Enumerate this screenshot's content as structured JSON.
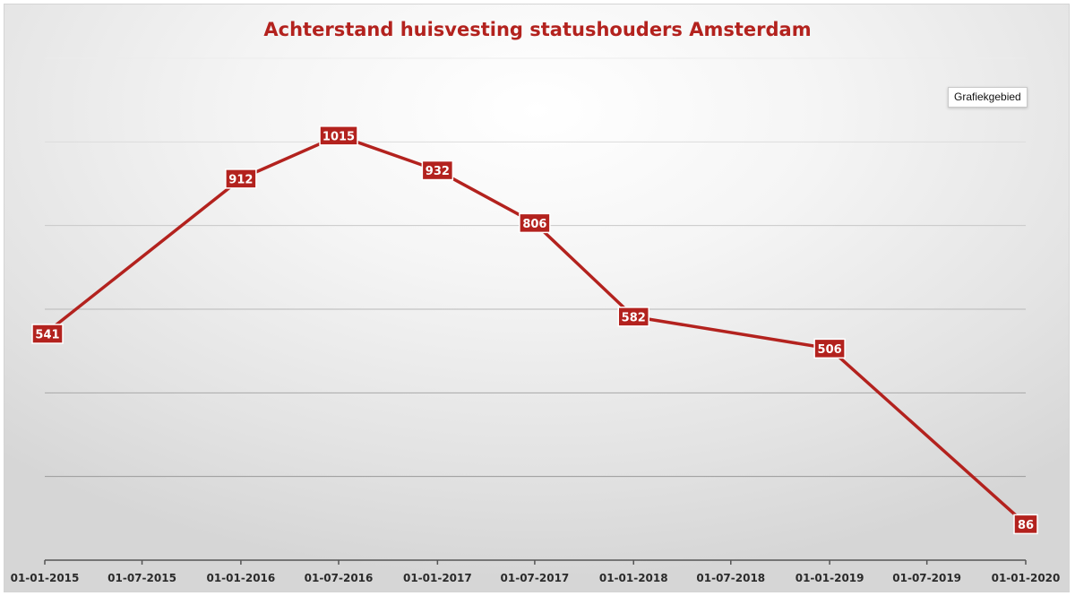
{
  "chart_data": {
    "type": "line",
    "title": "Achterstand huisvesting statushouders Amsterdam",
    "xlabel": "",
    "ylabel": "",
    "x_tick_labels": [
      "01-01-2015",
      "01-07-2015",
      "01-01-2016",
      "01-07-2016",
      "01-01-2017",
      "01-07-2017",
      "01-01-2018",
      "01-07-2018",
      "01-01-2019",
      "01-07-2019",
      "01-01-2020"
    ],
    "x": [
      "01-01-2015",
      "01-01-2016",
      "01-07-2016",
      "01-01-2017",
      "01-07-2017",
      "01-01-2018",
      "01-01-2019",
      "01-01-2020"
    ],
    "series": [
      {
        "values": [
          541,
          912,
          1015,
          932,
          806,
          582,
          506,
          86
        ]
      }
    ],
    "ylim": [
      0,
      1200
    ],
    "grid": true,
    "legend": "none",
    "colors": {
      "line": "#b3221e",
      "label_bg": "#b3221e",
      "label_text": "#ffffff",
      "title": "#b3221e"
    }
  },
  "tooltip": {
    "text": "Grafiekgebied"
  }
}
